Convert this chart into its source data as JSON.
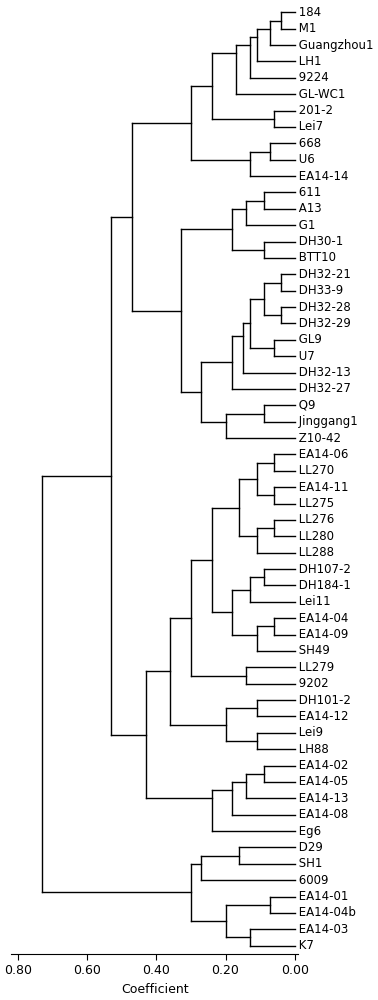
{
  "labels": [
    "184",
    "M1",
    "Guangzhou1",
    "LH1",
    "9224",
    "GL-WC1",
    "201-2",
    "Lei7",
    "668",
    "U6",
    "EA14-14",
    "611",
    "A13",
    "G1",
    "DH30-1",
    "BTT10",
    "DH32-21",
    "DH33-9",
    "DH32-28",
    "DH32-29",
    "GL9",
    "U7",
    "DH32-13",
    "DH32-27",
    "Q9",
    "Jinggang1",
    "Z10-42",
    "EA14-06",
    "LL270",
    "EA14-11",
    "LL275",
    "LL276",
    "LL280",
    "LL288",
    "DH107-2",
    "DH184-1",
    "Lei11",
    "EA14-04",
    "EA14-09",
    "SH49",
    "LL279",
    "9202",
    "DH101-2",
    "EA14-12",
    "Lei9",
    "LH88",
    "EA14-02",
    "EA14-05",
    "EA14-13",
    "EA14-08",
    "Eg6",
    "D29",
    "SH1",
    "6009",
    "EA14-01",
    "EA14-04b",
    "EA14-03",
    "K7"
  ],
  "xlabel": "Coefficient",
  "line_color": "#000000",
  "fontsize": 8.5,
  "tick_fontsize": 9,
  "lw": 1.0,
  "figsize": [
    3.78,
    10.0
  ],
  "dpi": 100
}
